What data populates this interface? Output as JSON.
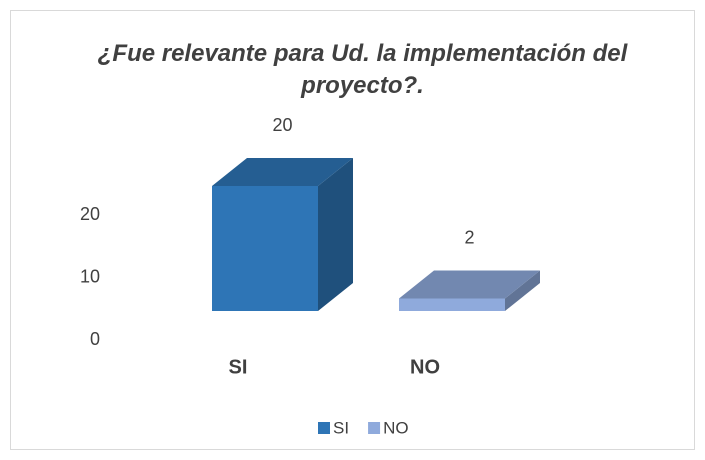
{
  "chart_data": {
    "type": "bar3d",
    "title": "¿Fue relevante para Ud. la implementación del proyecto?.",
    "categories": [
      "SI",
      "NO"
    ],
    "series": [
      {
        "name": "SI",
        "color": "#2e75b6",
        "values": [
          20,
          null
        ]
      },
      {
        "name": "NO",
        "color": "#8faadc",
        "values": [
          null,
          2
        ]
      }
    ],
    "ylim": [
      0,
      20
    ],
    "yticks": [
      0,
      10,
      20
    ],
    "grid": false,
    "legend": "bottom"
  }
}
